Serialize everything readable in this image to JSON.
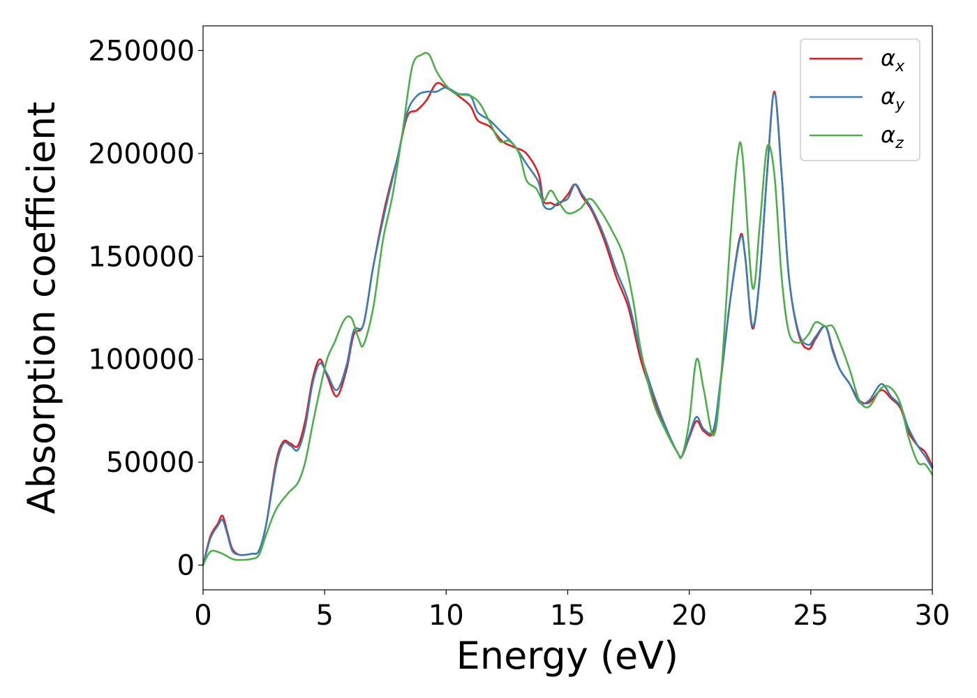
{
  "chart_data": {
    "type": "line",
    "xlabel": "Energy (eV)",
    "ylabel": "Absorption coefficient",
    "xlim": [
      0,
      30
    ],
    "ylim": [
      -12000,
      262000
    ],
    "xticks": [
      0,
      5,
      10,
      15,
      20,
      25,
      30
    ],
    "xtick_labels": [
      "0",
      "5",
      "10",
      "15",
      "20",
      "25",
      "30"
    ],
    "yticks": [
      0,
      50000,
      100000,
      150000,
      200000,
      250000
    ],
    "ytick_labels": [
      "0",
      "50000",
      "100000",
      "150000",
      "200000",
      "250000"
    ],
    "grid": false,
    "legend_position": "top-right",
    "series": [
      {
        "name": "α_x",
        "label_main": "α",
        "label_sub": "x",
        "color": "#e41a1c",
        "points": [
          [
            0,
            0
          ],
          [
            0.3,
            14000
          ],
          [
            0.6,
            20000
          ],
          [
            0.8,
            24000
          ],
          [
            1.0,
            16000
          ],
          [
            1.2,
            8000
          ],
          [
            1.5,
            5000
          ],
          [
            2.0,
            5500
          ],
          [
            2.3,
            7000
          ],
          [
            2.6,
            20000
          ],
          [
            3.0,
            50000
          ],
          [
            3.3,
            60000
          ],
          [
            3.6,
            59000
          ],
          [
            3.9,
            58000
          ],
          [
            4.2,
            70000
          ],
          [
            4.5,
            90000
          ],
          [
            4.8,
            100000
          ],
          [
            5.1,
            92000
          ],
          [
            5.5,
            82000
          ],
          [
            5.9,
            95000
          ],
          [
            6.2,
            112000
          ],
          [
            6.6,
            117000
          ],
          [
            7.0,
            145000
          ],
          [
            7.5,
            175000
          ],
          [
            8.0,
            198000
          ],
          [
            8.4,
            218000
          ],
          [
            8.8,
            221000
          ],
          [
            9.2,
            226000
          ],
          [
            9.6,
            234000
          ],
          [
            10.0,
            232000
          ],
          [
            10.5,
            228000
          ],
          [
            11.0,
            223000
          ],
          [
            11.3,
            216000
          ],
          [
            11.8,
            213000
          ],
          [
            12.3,
            206000
          ],
          [
            12.8,
            203000
          ],
          [
            13.3,
            200000
          ],
          [
            13.8,
            190000
          ],
          [
            14.0,
            177000
          ],
          [
            14.3,
            176000
          ],
          [
            14.6,
            175000
          ],
          [
            15.0,
            180000
          ],
          [
            15.3,
            185000
          ],
          [
            15.6,
            179000
          ],
          [
            16.0,
            172000
          ],
          [
            16.5,
            158000
          ],
          [
            17.0,
            140000
          ],
          [
            17.5,
            125000
          ],
          [
            18.0,
            100000
          ],
          [
            18.5,
            82000
          ],
          [
            19.0,
            67000
          ],
          [
            19.5,
            55000
          ],
          [
            19.7,
            53000
          ],
          [
            20.0,
            62000
          ],
          [
            20.3,
            70000
          ],
          [
            20.6,
            65000
          ],
          [
            21.0,
            65000
          ],
          [
            21.3,
            90000
          ],
          [
            21.7,
            130000
          ],
          [
            22.1,
            160000
          ],
          [
            22.3,
            150000
          ],
          [
            22.6,
            115000
          ],
          [
            22.9,
            140000
          ],
          [
            23.2,
            190000
          ],
          [
            23.5,
            230000
          ],
          [
            23.8,
            190000
          ],
          [
            24.1,
            140000
          ],
          [
            24.5,
            112000
          ],
          [
            24.9,
            105000
          ],
          [
            25.2,
            110000
          ],
          [
            25.6,
            116000
          ],
          [
            25.9,
            105000
          ],
          [
            26.2,
            95000
          ],
          [
            26.6,
            88000
          ],
          [
            27.0,
            80000
          ],
          [
            27.4,
            79000
          ],
          [
            27.9,
            85000
          ],
          [
            28.3,
            81000
          ],
          [
            28.7,
            76000
          ],
          [
            29.0,
            65000
          ],
          [
            29.4,
            58000
          ],
          [
            29.7,
            55000
          ],
          [
            30.0,
            48000
          ]
        ]
      },
      {
        "name": "α_y",
        "label_main": "α",
        "label_sub": "y",
        "color": "#377eb8",
        "points": [
          [
            0,
            0
          ],
          [
            0.3,
            13000
          ],
          [
            0.6,
            19000
          ],
          [
            0.8,
            22000
          ],
          [
            1.0,
            15000
          ],
          [
            1.2,
            7000
          ],
          [
            1.5,
            5000
          ],
          [
            2.0,
            5500
          ],
          [
            2.3,
            7000
          ],
          [
            2.6,
            20000
          ],
          [
            3.0,
            48000
          ],
          [
            3.3,
            59000
          ],
          [
            3.6,
            58000
          ],
          [
            3.9,
            56000
          ],
          [
            4.2,
            67000
          ],
          [
            4.5,
            88000
          ],
          [
            4.8,
            98000
          ],
          [
            5.1,
            93000
          ],
          [
            5.5,
            85000
          ],
          [
            5.9,
            97000
          ],
          [
            6.2,
            114000
          ],
          [
            6.6,
            117000
          ],
          [
            7.0,
            145000
          ],
          [
            7.5,
            173000
          ],
          [
            8.0,
            198000
          ],
          [
            8.4,
            220000
          ],
          [
            8.8,
            228000
          ],
          [
            9.2,
            230000
          ],
          [
            9.6,
            230000
          ],
          [
            10.0,
            232000
          ],
          [
            10.5,
            229000
          ],
          [
            11.0,
            228000
          ],
          [
            11.3,
            220000
          ],
          [
            11.8,
            216000
          ],
          [
            12.3,
            210000
          ],
          [
            12.8,
            204000
          ],
          [
            13.3,
            195000
          ],
          [
            13.8,
            186000
          ],
          [
            14.0,
            175000
          ],
          [
            14.3,
            173000
          ],
          [
            14.6,
            176000
          ],
          [
            15.0,
            178000
          ],
          [
            15.3,
            185000
          ],
          [
            15.6,
            180000
          ],
          [
            16.0,
            173000
          ],
          [
            16.5,
            160000
          ],
          [
            17.0,
            143000
          ],
          [
            17.5,
            128000
          ],
          [
            18.0,
            103000
          ],
          [
            18.5,
            84000
          ],
          [
            19.0,
            68000
          ],
          [
            19.5,
            55000
          ],
          [
            19.7,
            53000
          ],
          [
            20.0,
            63000
          ],
          [
            20.3,
            72000
          ],
          [
            20.6,
            66000
          ],
          [
            21.0,
            66000
          ],
          [
            21.3,
            91000
          ],
          [
            21.7,
            130000
          ],
          [
            22.1,
            159000
          ],
          [
            22.3,
            150000
          ],
          [
            22.6,
            116000
          ],
          [
            22.9,
            140000
          ],
          [
            23.2,
            190000
          ],
          [
            23.5,
            229000
          ],
          [
            23.8,
            190000
          ],
          [
            24.1,
            140000
          ],
          [
            24.5,
            113000
          ],
          [
            24.9,
            107000
          ],
          [
            25.2,
            111000
          ],
          [
            25.6,
            116000
          ],
          [
            25.9,
            104000
          ],
          [
            26.2,
            95000
          ],
          [
            26.6,
            88000
          ],
          [
            27.0,
            79000
          ],
          [
            27.4,
            80000
          ],
          [
            27.9,
            88000
          ],
          [
            28.3,
            82000
          ],
          [
            28.7,
            77000
          ],
          [
            29.0,
            67000
          ],
          [
            29.4,
            58000
          ],
          [
            29.7,
            53000
          ],
          [
            30.0,
            47000
          ]
        ]
      },
      {
        "name": "α_z",
        "label_main": "α",
        "label_sub": "z",
        "color": "#4daf4a",
        "points": [
          [
            0,
            0
          ],
          [
            0.2,
            5000
          ],
          [
            0.4,
            7000
          ],
          [
            0.8,
            5500
          ],
          [
            1.2,
            3000
          ],
          [
            1.5,
            2500
          ],
          [
            2.0,
            3000
          ],
          [
            2.3,
            5000
          ],
          [
            2.6,
            15000
          ],
          [
            3.0,
            27000
          ],
          [
            3.5,
            35000
          ],
          [
            3.9,
            40000
          ],
          [
            4.2,
            50000
          ],
          [
            4.5,
            68000
          ],
          [
            4.8,
            85000
          ],
          [
            5.1,
            100000
          ],
          [
            5.4,
            108000
          ],
          [
            5.8,
            119000
          ],
          [
            6.1,
            120000
          ],
          [
            6.4,
            110000
          ],
          [
            6.6,
            107000
          ],
          [
            7.0,
            125000
          ],
          [
            7.4,
            158000
          ],
          [
            7.8,
            180000
          ],
          [
            8.2,
            210000
          ],
          [
            8.6,
            242000
          ],
          [
            9.0,
            248000
          ],
          [
            9.3,
            248000
          ],
          [
            9.6,
            240000
          ],
          [
            10.0,
            233000
          ],
          [
            10.4,
            229000
          ],
          [
            11.0,
            228000
          ],
          [
            11.4,
            224000
          ],
          [
            11.8,
            215000
          ],
          [
            12.2,
            206000
          ],
          [
            12.6,
            206000
          ],
          [
            13.0,
            200000
          ],
          [
            13.3,
            187000
          ],
          [
            13.7,
            183000
          ],
          [
            14.0,
            177000
          ],
          [
            14.3,
            182000
          ],
          [
            14.6,
            177000
          ],
          [
            15.0,
            171000
          ],
          [
            15.5,
            173000
          ],
          [
            15.9,
            178000
          ],
          [
            16.3,
            173000
          ],
          [
            16.8,
            163000
          ],
          [
            17.3,
            150000
          ],
          [
            17.7,
            128000
          ],
          [
            18.0,
            105000
          ],
          [
            18.5,
            80000
          ],
          [
            19.0,
            66000
          ],
          [
            19.5,
            55000
          ],
          [
            19.7,
            53000
          ],
          [
            20.0,
            70000
          ],
          [
            20.3,
            100000
          ],
          [
            20.6,
            85000
          ],
          [
            21.0,
            63000
          ],
          [
            21.3,
            90000
          ],
          [
            21.7,
            160000
          ],
          [
            22.0,
            200000
          ],
          [
            22.2,
            198000
          ],
          [
            22.6,
            135000
          ],
          [
            22.9,
            165000
          ],
          [
            23.2,
            203000
          ],
          [
            23.5,
            190000
          ],
          [
            23.8,
            140000
          ],
          [
            24.1,
            113000
          ],
          [
            24.5,
            108000
          ],
          [
            24.9,
            112000
          ],
          [
            25.2,
            118000
          ],
          [
            25.6,
            116000
          ],
          [
            25.9,
            116000
          ],
          [
            26.2,
            108000
          ],
          [
            26.6,
            95000
          ],
          [
            27.0,
            80000
          ],
          [
            27.4,
            77000
          ],
          [
            27.9,
            86000
          ],
          [
            28.3,
            86000
          ],
          [
            28.7,
            78000
          ],
          [
            29.0,
            63000
          ],
          [
            29.4,
            50000
          ],
          [
            29.7,
            49000
          ],
          [
            30.0,
            44000
          ]
        ]
      }
    ]
  }
}
